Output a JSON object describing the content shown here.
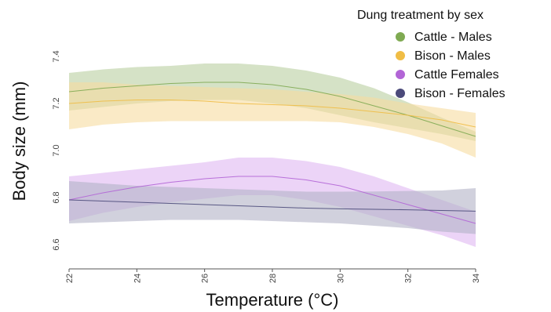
{
  "chart_data": {
    "type": "line",
    "title": "",
    "xlabel": "Temperature (°C)",
    "ylabel": "Body size (mm)",
    "xlim": [
      22,
      34
    ],
    "ylim": [
      6.6,
      7.4
    ],
    "x_ticks": [
      "22",
      "24",
      "26",
      "28",
      "30",
      "32",
      "34"
    ],
    "y_ticks": [
      "6.6",
      "6.8",
      "7.0",
      "7.2",
      "7.4"
    ],
    "grid": false,
    "legend": {
      "title": "Dung treatment by sex",
      "position": "top-right"
    },
    "x": [
      22,
      23,
      24,
      25,
      26,
      27,
      28,
      29,
      30,
      31,
      32,
      33,
      34
    ],
    "series": [
      {
        "name": "Cattle - Males",
        "color": "#7faa52",
        "fill_color": "#b9cfa0",
        "values": [
          7.25,
          7.265,
          7.275,
          7.285,
          7.29,
          7.29,
          7.28,
          7.26,
          7.23,
          7.19,
          7.15,
          7.105,
          7.06
        ],
        "lower": [
          7.17,
          7.185,
          7.2,
          7.21,
          7.215,
          7.215,
          7.2,
          7.18,
          7.15,
          7.12,
          7.095,
          7.07,
          7.04
        ],
        "upper": [
          7.33,
          7.345,
          7.355,
          7.36,
          7.37,
          7.37,
          7.36,
          7.34,
          7.31,
          7.265,
          7.205,
          7.14,
          7.08
        ]
      },
      {
        "name": "Bison - Males",
        "color": "#f0bd45",
        "fill_color": "#f7dca0",
        "values": [
          7.2,
          7.21,
          7.215,
          7.215,
          7.21,
          7.2,
          7.195,
          7.19,
          7.18,
          7.165,
          7.15,
          7.13,
          7.1
        ],
        "lower": [
          7.09,
          7.11,
          7.12,
          7.125,
          7.125,
          7.125,
          7.125,
          7.125,
          7.12,
          7.1,
          7.07,
          7.03,
          6.97
        ],
        "upper": [
          7.29,
          7.29,
          7.28,
          7.275,
          7.27,
          7.265,
          7.26,
          7.25,
          7.24,
          7.225,
          7.2,
          7.18,
          7.16
        ]
      },
      {
        "name": "Cattle Females",
        "color": "#b265d6",
        "fill_color": "#dfb8f2",
        "values": [
          6.79,
          6.82,
          6.845,
          6.865,
          6.88,
          6.89,
          6.89,
          6.875,
          6.85,
          6.81,
          6.77,
          6.73,
          6.69
        ],
        "lower": [
          6.7,
          6.735,
          6.76,
          6.78,
          6.795,
          6.81,
          6.81,
          6.79,
          6.76,
          6.72,
          6.68,
          6.64,
          6.59
        ],
        "upper": [
          6.89,
          6.905,
          6.92,
          6.935,
          6.95,
          6.97,
          6.97,
          6.955,
          6.93,
          6.89,
          6.84,
          6.79,
          6.74
        ]
      },
      {
        "name": "Bison - Females",
        "color": "#4b4a7a",
        "fill_color": "#b3b3c6",
        "values": [
          6.79,
          6.785,
          6.78,
          6.775,
          6.77,
          6.765,
          6.76,
          6.755,
          6.752,
          6.75,
          6.748,
          6.745,
          6.742
        ],
        "lower": [
          6.69,
          6.695,
          6.7,
          6.705,
          6.705,
          6.705,
          6.7,
          6.695,
          6.69,
          6.68,
          6.67,
          6.655,
          6.645
        ],
        "upper": [
          6.87,
          6.86,
          6.85,
          6.845,
          6.84,
          6.835,
          6.83,
          6.825,
          6.825,
          6.826,
          6.828,
          6.83,
          6.84
        ]
      }
    ]
  }
}
